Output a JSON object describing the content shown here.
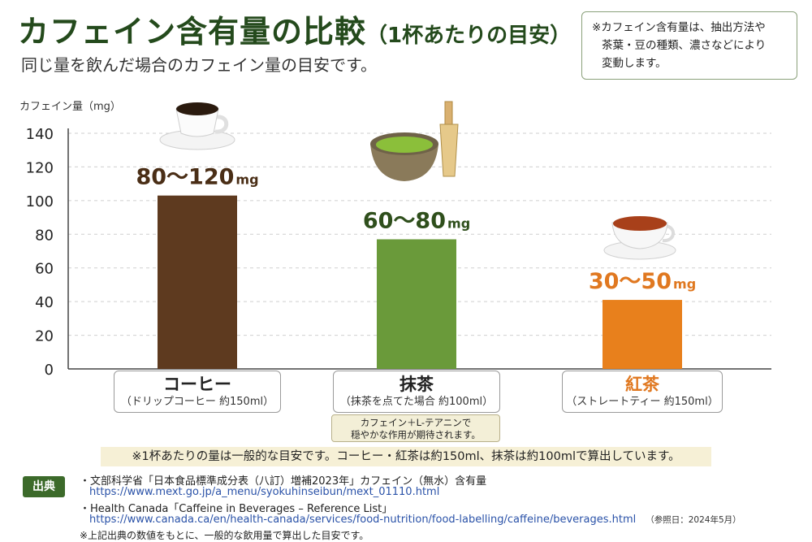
{
  "title": "カフェイン含有量の比較",
  "title_suffix": "（1杯あたりの目安）",
  "subtitle": "同じ量を飲んだ場合のカフェイン量の目安です。",
  "note": {
    "line1": "※カフェイン含有量は、抽出方法や",
    "line2": "茶葉・豆の種類、濃さなどにより",
    "line3": "変動します。"
  },
  "chart_data": {
    "type": "bar",
    "ylabel": "カフェイン量（mg）",
    "ylim": [
      0,
      140
    ],
    "yticks": [
      0,
      20,
      40,
      60,
      80,
      100,
      120,
      140
    ],
    "grid": true,
    "categories": [
      "コーヒー",
      "抹茶",
      "紅茶"
    ],
    "category_notes": [
      "（ドリップコーヒー 約150ml）",
      "（抹茶を点てた場合 約100ml）",
      "（ストレートティー 約150ml）"
    ],
    "values": [
      103,
      77,
      41
    ],
    "value_labels": [
      "80～120",
      "60～80",
      "30～50"
    ],
    "value_unit": "mg",
    "colors": [
      "#5e3a1f",
      "#6a9a3a",
      "#e8801c"
    ],
    "label_colors": [
      "#4a2e16",
      "#2f4f1c",
      "#e07820"
    ],
    "icons": [
      "coffee-cup-icon",
      "matcha-bowl-icon",
      "tea-cup-icon"
    ]
  },
  "matcha_note": {
    "line1": "カフェイン＋L-テアニンで",
    "line2": "穏やかな作用が期待されます。"
  },
  "footnote": "※1杯あたりの量は一般的な目安です。コーヒー・紅茶は約150ml、抹茶は約100mlで算出しています。",
  "sources": {
    "badge": "出典",
    "items": [
      {
        "text": "・文部科学省「日本食品標準成分表（八訂）増補2023年」カフェイン（無水）含有量",
        "url": "https://www.mext.go.jp/a_menu/syokuhinseibun/mext_01110.html"
      },
      {
        "text": "・Health Canada「Caffeine in Beverages – Reference List」",
        "url": "https://www.canada.ca/en/health-canada/services/food-nutrition/food-labelling/caffeine/beverages.html",
        "ref": "（参照日：2024年5月）"
      }
    ]
  },
  "bottom_note": "※上記出典の数値をもとに、一般的な飲用量で算出した目安です。"
}
